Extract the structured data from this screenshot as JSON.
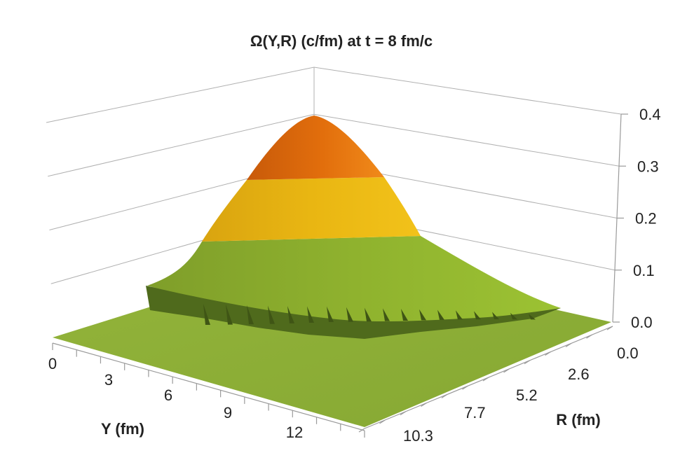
{
  "chart_data": {
    "type": "surface",
    "title": "Ω(Y,R)     (c/fm)   at   t =  8 fm/c",
    "xlabel": "Y  (fm)",
    "ylabel": "R  (fm)",
    "zlabel": "",
    "x_ticks": [
      "0",
      "3",
      "6",
      "9",
      "12"
    ],
    "y_ticks": [
      "0.0",
      "2.6",
      "5.2",
      "7.7",
      "10.3"
    ],
    "z_ticks": [
      "0.0",
      "0.1",
      "0.2",
      "0.3",
      "0.4"
    ],
    "xlim": [
      0,
      13
    ],
    "ylim": [
      0,
      12
    ],
    "zlim": [
      0,
      0.4
    ],
    "peak": {
      "Y": 0,
      "R": 0,
      "value": 0.37
    },
    "color_bands": [
      {
        "range": [
          0.0,
          0.1
        ],
        "color": "#8fb23a"
      },
      {
        "range": [
          0.1,
          0.2
        ],
        "color": "#9ec02f"
      },
      {
        "range": [
          0.2,
          0.3
        ],
        "color": "#e6b415"
      },
      {
        "range": [
          0.3,
          0.4
        ],
        "color": "#e8750d"
      }
    ],
    "grid": true
  }
}
